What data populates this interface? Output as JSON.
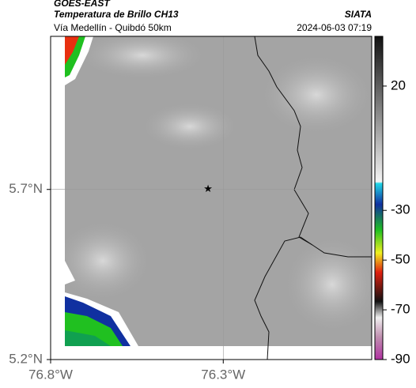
{
  "header": {
    "title": "GOES-EAST",
    "subtitle": "Temperatura de Brillo CH13",
    "source": "SIATA",
    "route": "Vía Medellín - Quibdó 50km",
    "timestamp": "2024-06-03 07:19"
  },
  "map": {
    "xlim": [
      -76.8,
      -75.87
    ],
    "ylim": [
      5.2,
      6.15
    ],
    "xticks": [
      {
        "value": -76.8,
        "label": "76.8°W"
      },
      {
        "value": -76.3,
        "label": "76.3°W"
      }
    ],
    "yticks": [
      {
        "value": 5.2,
        "label": "5.2°N"
      },
      {
        "value": 5.7,
        "label": "5.7°N"
      }
    ],
    "grid": true,
    "marker": {
      "lon": -76.344,
      "lat": 5.7
    }
  },
  "colorbar": {
    "lim": [
      40,
      -90
    ],
    "ticks": [
      20,
      -30,
      -50,
      -70,
      -90
    ]
  }
}
